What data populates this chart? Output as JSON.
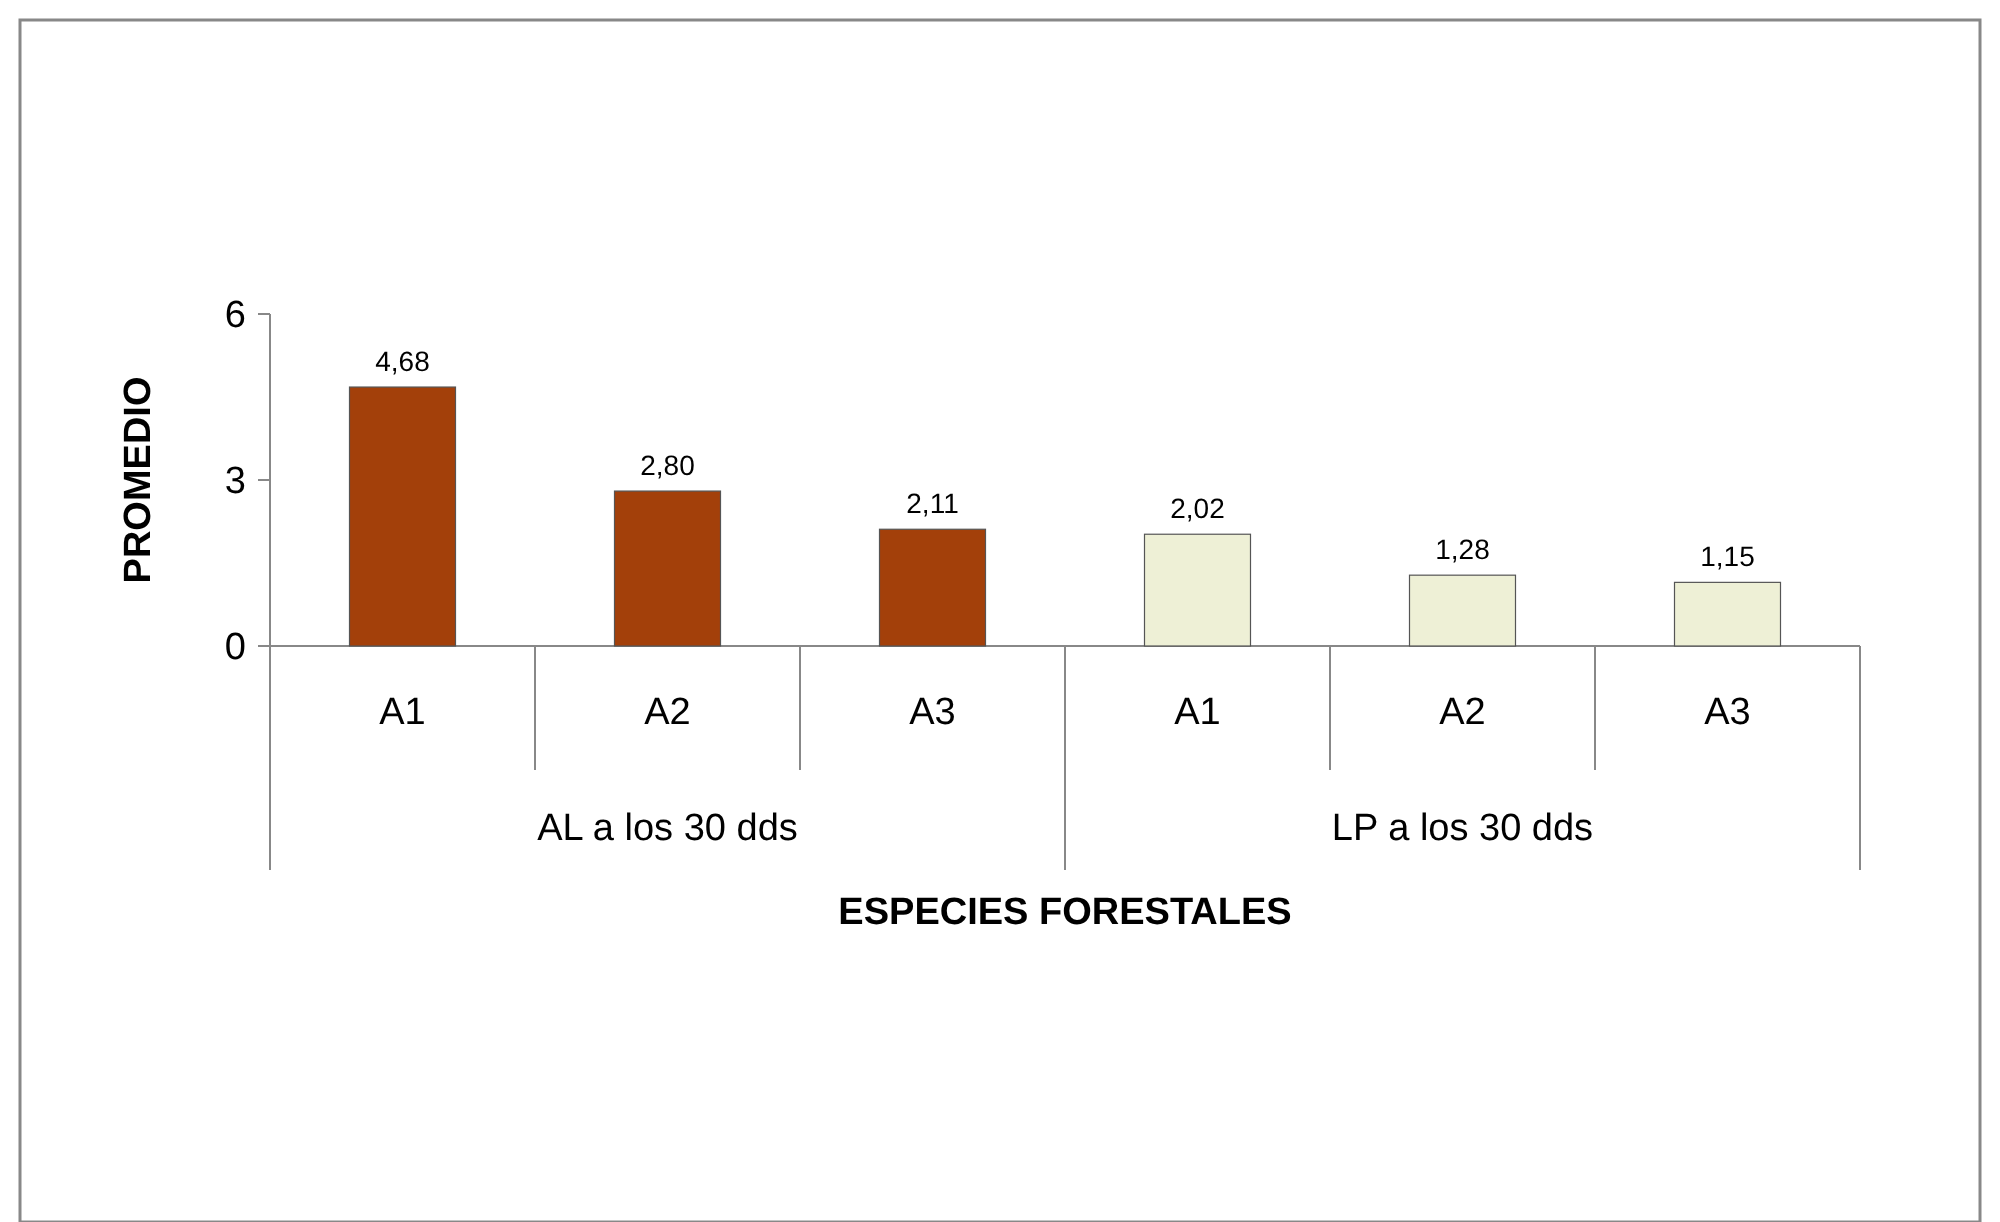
{
  "chart_data": {
    "type": "bar",
    "xlabel": "ESPECIES FORESTALES",
    "ylabel": "PROMEDIO",
    "categories": [
      "A1",
      "A2",
      "A3",
      "A1",
      "A2",
      "A3"
    ],
    "ylim": [
      0,
      6
    ],
    "yticks": [
      0,
      3,
      6
    ],
    "annotations": [
      "AL a los 30 dds",
      "LP a los 30 dds"
    ],
    "values": [
      4.68,
      2.8,
      2.11,
      2.02,
      1.28,
      1.15
    ],
    "colors": [
      "#a3400a",
      "#a3400a",
      "#a3400a",
      "#eef0d6",
      "#eef0d6",
      "#eef0d6"
    ],
    "value_labels": [
      "4,68",
      "2,80",
      "2,11",
      "2,02",
      "1,28",
      "1,15"
    ]
  }
}
